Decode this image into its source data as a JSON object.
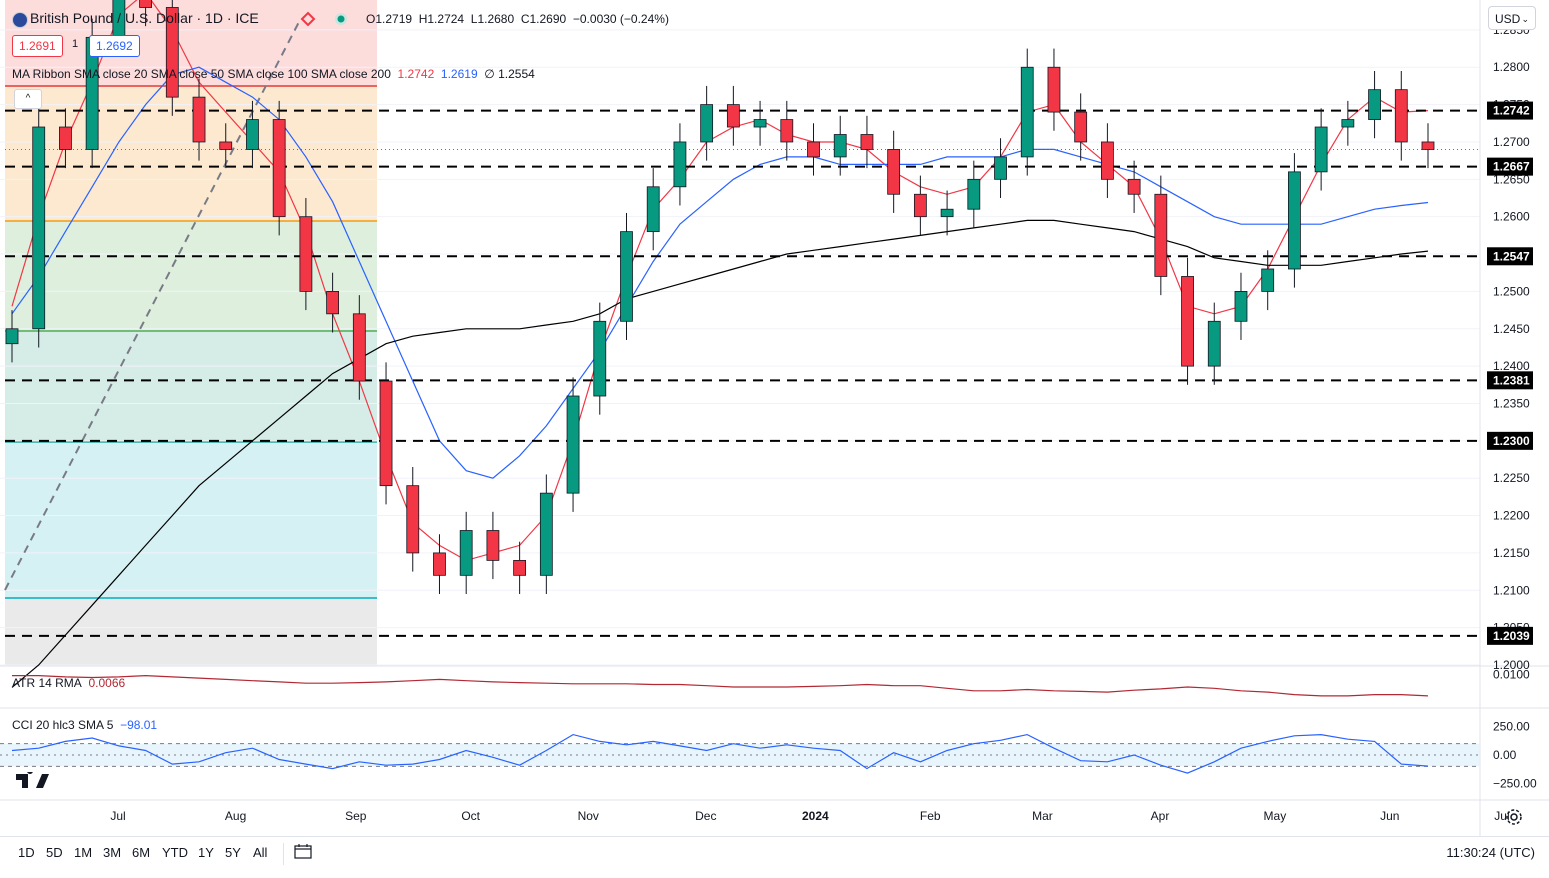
{
  "header": {
    "symbol_title": "British Pound / U.S. Dollar · 1D · ICE",
    "ohlc": {
      "open": "O1.2719",
      "high": "H1.2724",
      "low": "L1.2680",
      "close": "C1.2690",
      "change": "−0.0030 (−0.24%)"
    },
    "sell_price": "1.2691",
    "spread": "1",
    "buy_price": "1.2692",
    "currency_button": "USD",
    "collapse_label": "^"
  },
  "indicators": {
    "ma_ribbon": {
      "label": "MA Ribbon SMA close 20 SMA close 50 SMA close 100 SMA close 200",
      "v20": "1.2742",
      "v50": "1.2619",
      "v200_label": "∅ 1.2554"
    },
    "atr": {
      "label": "ATR 14 RMA",
      "value": "0.0066"
    },
    "cci": {
      "label": "CCI 20 hlc3 SMA 5",
      "value": "−98.01"
    }
  },
  "colors": {
    "up": "#089981",
    "down": "#f23645",
    "sma20": "#f23645",
    "sma50": "#2962ff",
    "sma200": "#000000",
    "hline": "#000000",
    "atr": "#b22833",
    "cci": "#2962ff"
  },
  "price_axis": [
    "1.2850",
    "1.2800",
    "1.2750",
    "1.2700",
    "1.2650",
    "1.2600",
    "1.2550",
    "1.2500",
    "1.2450",
    "1.2400",
    "1.2350",
    "1.2300",
    "1.2250",
    "1.2200",
    "1.2150",
    "1.2100",
    "1.2050",
    "1.2000"
  ],
  "atr_axis": [
    "0.0100"
  ],
  "cci_axis": [
    "250.00",
    "0.00",
    "−250.00"
  ],
  "key_levels": [
    "1.2742",
    "1.2667",
    "1.2547",
    "1.2381",
    "1.2300",
    "1.2039"
  ],
  "time_axis": [
    "Jul",
    "Aug",
    "Sep",
    "Oct",
    "Nov",
    "Dec",
    "2024",
    "Feb",
    "Mar",
    "Apr",
    "May",
    "Jun",
    "Jul"
  ],
  "range_buttons": [
    "1D",
    "5D",
    "1M",
    "3M",
    "6M",
    "YTD",
    "1Y",
    "5Y",
    "All"
  ],
  "clock": "11:30:24 (UTC)",
  "chart_data": {
    "type": "candlestick",
    "x": [
      "2023-06-15",
      "2023-06-22",
      "2023-06-29",
      "2023-07-06",
      "2023-07-13",
      "2023-07-20",
      "2023-07-27",
      "2023-08-03",
      "2023-08-10",
      "2023-08-17",
      "2023-08-24",
      "2023-08-31",
      "2023-09-07",
      "2023-09-14",
      "2023-09-21",
      "2023-09-28",
      "2023-10-05",
      "2023-10-12",
      "2023-10-19",
      "2023-10-26",
      "2023-11-02",
      "2023-11-09",
      "2023-11-16",
      "2023-11-23",
      "2023-11-30",
      "2023-12-07",
      "2023-12-14",
      "2023-12-21",
      "2023-12-28",
      "2024-01-04",
      "2024-01-11",
      "2024-01-18",
      "2024-01-25",
      "2024-02-01",
      "2024-02-08",
      "2024-02-15",
      "2024-02-22",
      "2024-02-29",
      "2024-03-07",
      "2024-03-14",
      "2024-03-21",
      "2024-03-28",
      "2024-04-04",
      "2024-04-11",
      "2024-04-18",
      "2024-04-25",
      "2024-05-02",
      "2024-05-09",
      "2024-05-16",
      "2024-05-23",
      "2024-05-30",
      "2024-06-06",
      "2024-06-13",
      "2024-06-20"
    ],
    "close": [
      1.245,
      1.272,
      1.269,
      1.284,
      1.297,
      1.288,
      1.276,
      1.27,
      1.269,
      1.273,
      1.26,
      1.25,
      1.247,
      1.238,
      1.224,
      1.215,
      1.212,
      1.218,
      1.214,
      1.212,
      1.223,
      1.236,
      1.246,
      1.258,
      1.264,
      1.27,
      1.275,
      1.272,
      1.273,
      1.27,
      1.268,
      1.271,
      1.269,
      1.263,
      1.26,
      1.261,
      1.265,
      1.268,
      1.28,
      1.274,
      1.27,
      1.265,
      1.263,
      1.252,
      1.24,
      1.246,
      1.25,
      1.253,
      1.266,
      1.272,
      1.273,
      1.277,
      1.27,
      1.269
    ],
    "series": [
      {
        "name": "SMA close 20",
        "values": [
          1.248,
          1.26,
          1.27,
          1.278,
          1.287,
          1.29,
          1.285,
          1.278,
          1.274,
          1.27,
          1.266,
          1.258,
          1.247,
          1.238,
          1.228,
          1.219,
          1.216,
          1.214,
          1.215,
          1.216,
          1.22,
          1.23,
          1.242,
          1.252,
          1.261,
          1.265,
          1.27,
          1.272,
          1.273,
          1.271,
          1.27,
          1.27,
          1.269,
          1.266,
          1.264,
          1.263,
          1.264,
          1.268,
          1.274,
          1.275,
          1.27,
          1.267,
          1.264,
          1.257,
          1.248,
          1.247,
          1.248,
          1.253,
          1.26,
          1.267,
          1.273,
          1.276,
          1.274,
          1.2742
        ]
      },
      {
        "name": "SMA close 50",
        "values": [
          1.247,
          1.252,
          1.258,
          1.264,
          1.27,
          1.275,
          1.279,
          1.28,
          1.278,
          1.276,
          1.273,
          1.268,
          1.262,
          1.254,
          1.246,
          1.238,
          1.23,
          1.226,
          1.225,
          1.228,
          1.232,
          1.237,
          1.242,
          1.248,
          1.254,
          1.259,
          1.262,
          1.265,
          1.267,
          1.268,
          1.268,
          1.267,
          1.267,
          1.267,
          1.267,
          1.268,
          1.268,
          1.268,
          1.269,
          1.269,
          1.268,
          1.267,
          1.266,
          1.264,
          1.262,
          1.26,
          1.259,
          1.259,
          1.259,
          1.259,
          1.26,
          1.261,
          1.2615,
          1.2619
        ]
      },
      {
        "name": "SMA close 200",
        "values": [
          1.197,
          1.2,
          1.204,
          1.208,
          1.212,
          1.216,
          1.22,
          1.224,
          1.227,
          1.23,
          1.233,
          1.236,
          1.239,
          1.241,
          1.243,
          1.244,
          1.2445,
          1.245,
          1.245,
          1.245,
          1.2455,
          1.246,
          1.247,
          1.249,
          1.25,
          1.251,
          1.252,
          1.253,
          1.254,
          1.255,
          1.2555,
          1.256,
          1.2565,
          1.257,
          1.2575,
          1.258,
          1.2585,
          1.259,
          1.2595,
          1.2595,
          1.259,
          1.2585,
          1.258,
          1.257,
          1.256,
          1.2545,
          1.254,
          1.2535,
          1.2535,
          1.2535,
          1.254,
          1.2545,
          1.255,
          1.2554
        ]
      }
    ],
    "horizontal_levels": [
      1.2742,
      1.2667,
      1.2547,
      1.2381,
      1.23,
      1.2039
    ],
    "ylim": [
      1.2,
      1.289
    ],
    "atr": {
      "values": [
        0.0098,
        0.0098,
        0.0096,
        0.0095,
        0.0096,
        0.0098,
        0.0096,
        0.0094,
        0.0092,
        0.009,
        0.0088,
        0.0086,
        0.0086,
        0.0087,
        0.0088,
        0.009,
        0.0092,
        0.009,
        0.0088,
        0.0087,
        0.0086,
        0.0085,
        0.0085,
        0.0085,
        0.0084,
        0.0084,
        0.0082,
        0.008,
        0.008,
        0.008,
        0.0081,
        0.0082,
        0.0084,
        0.0082,
        0.0082,
        0.0078,
        0.0074,
        0.0074,
        0.0076,
        0.0074,
        0.0073,
        0.0072,
        0.0075,
        0.0077,
        0.008,
        0.0078,
        0.0074,
        0.0072,
        0.0068,
        0.0066,
        0.0066,
        0.0068,
        0.0068,
        0.0066
      ],
      "ylim": [
        0.005,
        0.011
      ]
    },
    "cci": {
      "values": [
        40,
        60,
        120,
        150,
        80,
        40,
        -80,
        -60,
        20,
        60,
        -40,
        -80,
        -120,
        -60,
        -90,
        -80,
        -40,
        40,
        -20,
        -90,
        40,
        180,
        120,
        90,
        120,
        80,
        40,
        100,
        60,
        90,
        60,
        40,
        -120,
        20,
        -60,
        40,
        100,
        130,
        180,
        60,
        -50,
        -60,
        0,
        -90,
        -160,
        -60,
        60,
        120,
        170,
        180,
        140,
        120,
        -80,
        -98
      ],
      "ylim": [
        -380,
        380
      ],
      "band": [
        -100,
        100
      ]
    }
  }
}
